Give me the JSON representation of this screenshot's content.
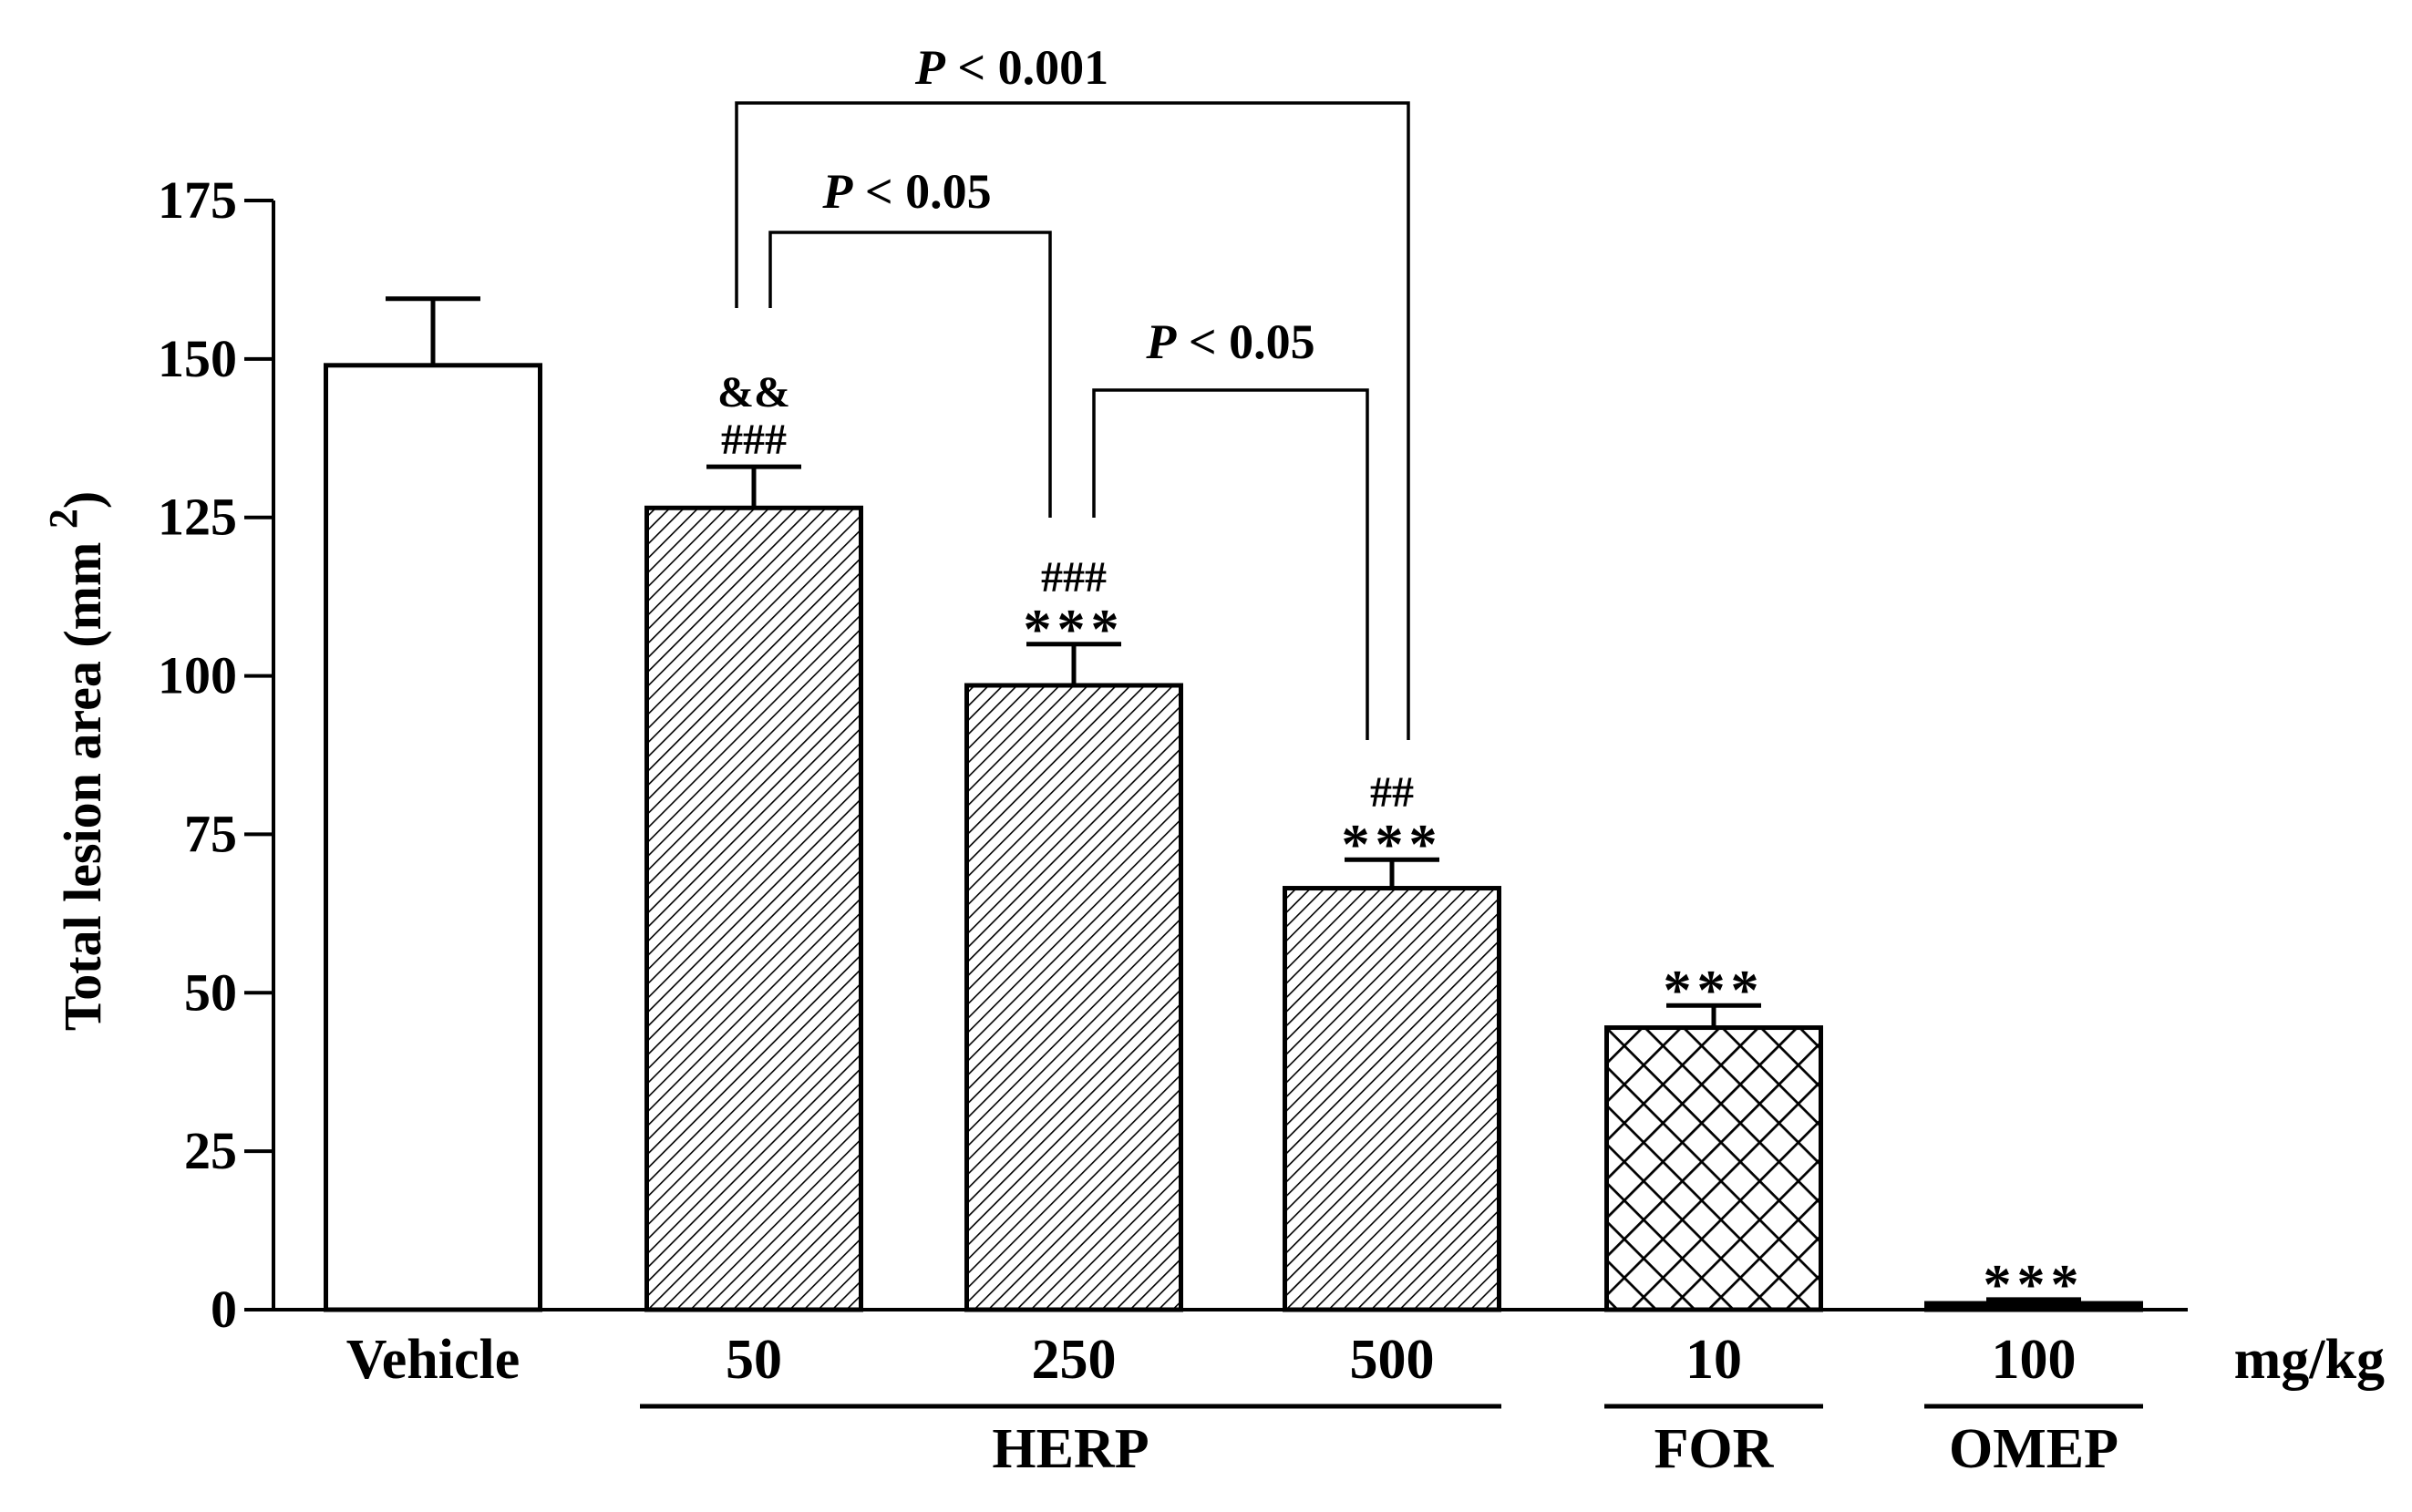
{
  "chart_data": {
    "type": "bar",
    "ylabel": "Total lesion area (mm",
    "ylabel_superscript": "2",
    "ylabel_close": ")",
    "ylim": [
      0,
      175
    ],
    "yticks": [
      0,
      25,
      50,
      75,
      100,
      125,
      150,
      175
    ],
    "unit_label": "mg/kg",
    "bars": [
      {
        "category": "Vehicle",
        "value": 149,
        "error": 10.5,
        "fill": "none",
        "marks": []
      },
      {
        "category": "50",
        "value": 126.5,
        "error": 6.5,
        "fill": "hatch",
        "marks": [
          "###",
          "&&"
        ]
      },
      {
        "category": "250",
        "value": 98.5,
        "error": 6.5,
        "fill": "hatch",
        "marks": [
          "***",
          "###"
        ]
      },
      {
        "category": "500",
        "value": 66.5,
        "error": 4.5,
        "fill": "hatch",
        "marks": [
          "***",
          "##"
        ]
      },
      {
        "category": "10",
        "value": 44.5,
        "error": 3.5,
        "fill": "crosshatch",
        "marks": [
          "***"
        ]
      },
      {
        "category": "100",
        "value": 1,
        "error": 0.6,
        "fill": "solid",
        "marks": [
          "***"
        ]
      }
    ],
    "groups": [
      {
        "label": "HERP",
        "from": 1,
        "to": 3
      },
      {
        "label": "FOR",
        "from": 4,
        "to": 4
      },
      {
        "label": "OMEP",
        "from": 5,
        "to": 5
      }
    ],
    "comparisons": [
      {
        "from": 1,
        "to": 3,
        "label_p": "P",
        "label_rest": " < 0.001"
      },
      {
        "from": 1,
        "to": 2,
        "label_p": "P",
        "label_rest": " < 0.05"
      },
      {
        "from": 2,
        "to": 3,
        "label_p": "P",
        "label_rest": " < 0.05"
      }
    ]
  }
}
